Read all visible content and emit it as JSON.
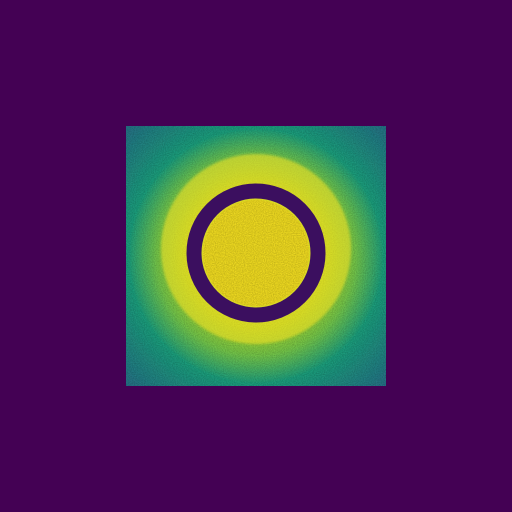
{
  "image": {
    "colormap": "viridis",
    "colors": {
      "background": "#440154",
      "square_edge": "#2a788e",
      "square_mid": "#22a884",
      "halo": "#7ad151",
      "bright": "#fde725",
      "ring": "#3b0f5f"
    },
    "shapes": [
      "noisy-square",
      "bright-halo",
      "dark-ring",
      "bright-center-disc"
    ]
  }
}
